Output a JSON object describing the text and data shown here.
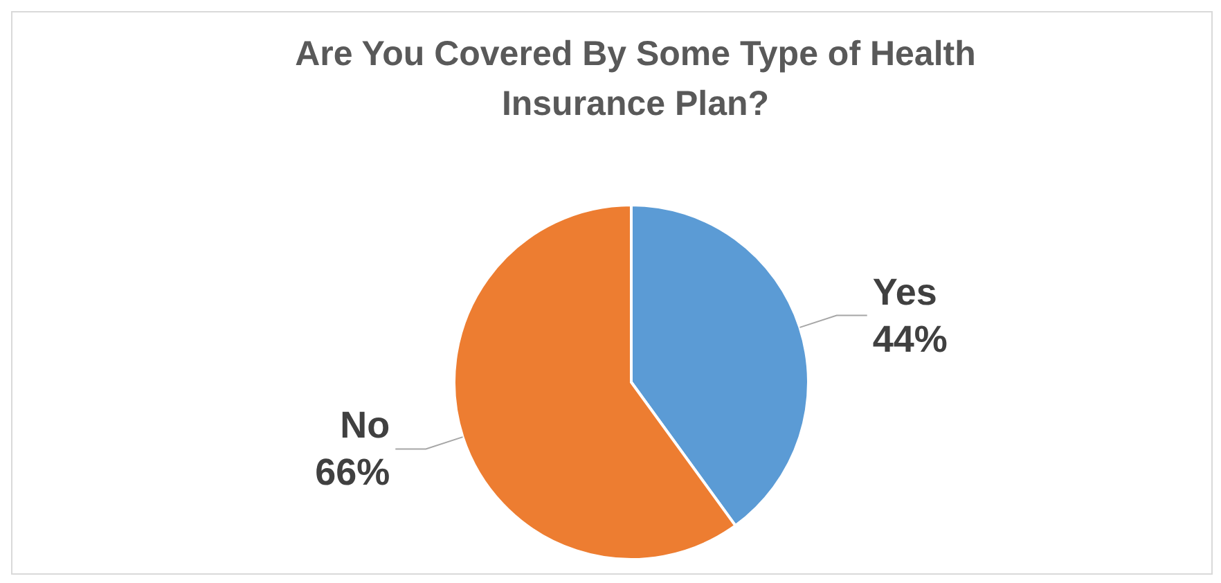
{
  "chart_data": {
    "type": "pie",
    "title": "Are You Covered By Some Type of Health Insurance Plan?",
    "categories": [
      "Yes",
      "No"
    ],
    "values": [
      44,
      66
    ],
    "colors": [
      "#5b9bd5",
      "#ed7d31"
    ],
    "value_labels": [
      "44%",
      "66%"
    ]
  }
}
